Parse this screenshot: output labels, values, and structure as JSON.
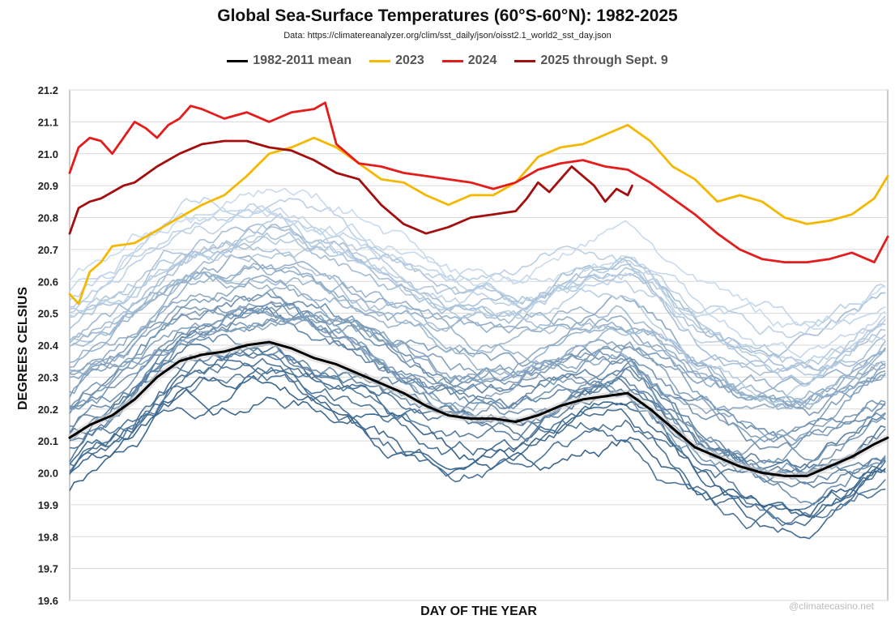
{
  "chart_data": {
    "type": "line",
    "title": "Global Sea-Surface Temperatures (60°S-60°N): 1982-2025",
    "subtitle": "Data: https://climatereanalyzer.org/clim/sst_daily/json/oisst2.1_world2_sst_day.json",
    "xlabel": "DAY OF THE YEAR",
    "ylabel": "DEGREES CELSIUS",
    "ylim": [
      19.6,
      21.2
    ],
    "xlim": [
      1,
      366
    ],
    "y_ticks": [
      "21.2",
      "21.1",
      "21.0",
      "20.9",
      "20.8",
      "20.7",
      "20.6",
      "20.5",
      "20.4",
      "20.3",
      "20.2",
      "20.1",
      "20.0",
      "19.9",
      "19.8",
      "19.7",
      "19.6"
    ],
    "grid": "horizontal",
    "legend_position": "top",
    "series": [
      {
        "name": "1982-2011 mean",
        "color": "#000000",
        "x": [
          1,
          10,
          20,
          30,
          40,
          50,
          60,
          70,
          80,
          90,
          100,
          110,
          120,
          130,
          140,
          150,
          160,
          170,
          180,
          190,
          200,
          210,
          220,
          230,
          240,
          250,
          260,
          270,
          280,
          290,
          300,
          310,
          320,
          330,
          340,
          350,
          360,
          366
        ],
        "y": [
          20.11,
          20.15,
          20.18,
          20.23,
          20.3,
          20.35,
          20.37,
          20.38,
          20.4,
          20.41,
          20.39,
          20.36,
          20.34,
          20.31,
          20.28,
          20.25,
          20.21,
          20.18,
          20.17,
          20.17,
          20.16,
          20.18,
          20.21,
          20.23,
          20.24,
          20.25,
          20.2,
          20.14,
          20.08,
          20.05,
          20.02,
          20.0,
          19.99,
          19.99,
          20.02,
          20.05,
          20.09,
          20.11
        ]
      },
      {
        "name": "2023",
        "color": "#f5b800",
        "x": [
          1,
          5,
          10,
          15,
          20,
          30,
          40,
          50,
          60,
          70,
          80,
          90,
          100,
          110,
          120,
          130,
          140,
          150,
          160,
          170,
          180,
          190,
          200,
          210,
          220,
          230,
          240,
          250,
          260,
          270,
          280,
          290,
          300,
          310,
          320,
          330,
          340,
          350,
          360,
          366
        ],
        "y": [
          20.56,
          20.53,
          20.63,
          20.66,
          20.71,
          20.72,
          20.76,
          20.8,
          20.84,
          20.87,
          20.93,
          21.0,
          21.02,
          21.05,
          21.02,
          20.97,
          20.92,
          20.91,
          20.87,
          20.84,
          20.87,
          20.87,
          20.91,
          20.99,
          21.02,
          21.03,
          21.06,
          21.09,
          21.04,
          20.96,
          20.92,
          20.85,
          20.87,
          20.85,
          20.8,
          20.78,
          20.79,
          20.81,
          20.86,
          20.93
        ]
      },
      {
        "name": "2024",
        "color": "#e61b1b",
        "x": [
          1,
          5,
          10,
          15,
          20,
          25,
          30,
          35,
          40,
          45,
          50,
          55,
          60,
          70,
          80,
          90,
          100,
          110,
          115,
          120,
          130,
          140,
          150,
          160,
          170,
          180,
          190,
          200,
          210,
          220,
          230,
          240,
          250,
          260,
          270,
          280,
          290,
          300,
          310,
          320,
          330,
          340,
          350,
          360,
          366
        ],
        "y": [
          20.94,
          21.02,
          21.05,
          21.04,
          21.0,
          21.05,
          21.1,
          21.08,
          21.05,
          21.09,
          21.11,
          21.15,
          21.14,
          21.11,
          21.13,
          21.1,
          21.13,
          21.14,
          21.16,
          21.03,
          20.97,
          20.96,
          20.94,
          20.93,
          20.92,
          20.91,
          20.89,
          20.91,
          20.95,
          20.97,
          20.98,
          20.96,
          20.95,
          20.91,
          20.86,
          20.81,
          20.75,
          20.7,
          20.67,
          20.66,
          20.66,
          20.67,
          20.69,
          20.66,
          20.74
        ]
      },
      {
        "name": "2025 through Sept. 9",
        "color": "#a30f0f",
        "x": [
          1,
          5,
          10,
          15,
          20,
          25,
          30,
          40,
          50,
          60,
          70,
          80,
          90,
          100,
          110,
          120,
          130,
          140,
          150,
          160,
          170,
          180,
          190,
          200,
          205,
          210,
          215,
          220,
          225,
          230,
          235,
          240,
          245,
          250,
          252
        ],
        "y": [
          20.75,
          20.83,
          20.85,
          20.86,
          20.88,
          20.9,
          20.91,
          20.96,
          21.0,
          21.03,
          21.04,
          21.04,
          21.02,
          21.01,
          20.98,
          20.94,
          20.92,
          20.84,
          20.78,
          20.75,
          20.77,
          20.8,
          20.81,
          20.82,
          20.86,
          20.91,
          20.88,
          20.92,
          20.96,
          20.93,
          20.9,
          20.85,
          20.89,
          20.87,
          20.9
        ]
      }
    ],
    "background_series": {
      "description_color_range": [
        "#2f5d86",
        "#c6d9ec"
      ],
      "count": 40
    }
  },
  "watermark": "@climatecasino.net"
}
